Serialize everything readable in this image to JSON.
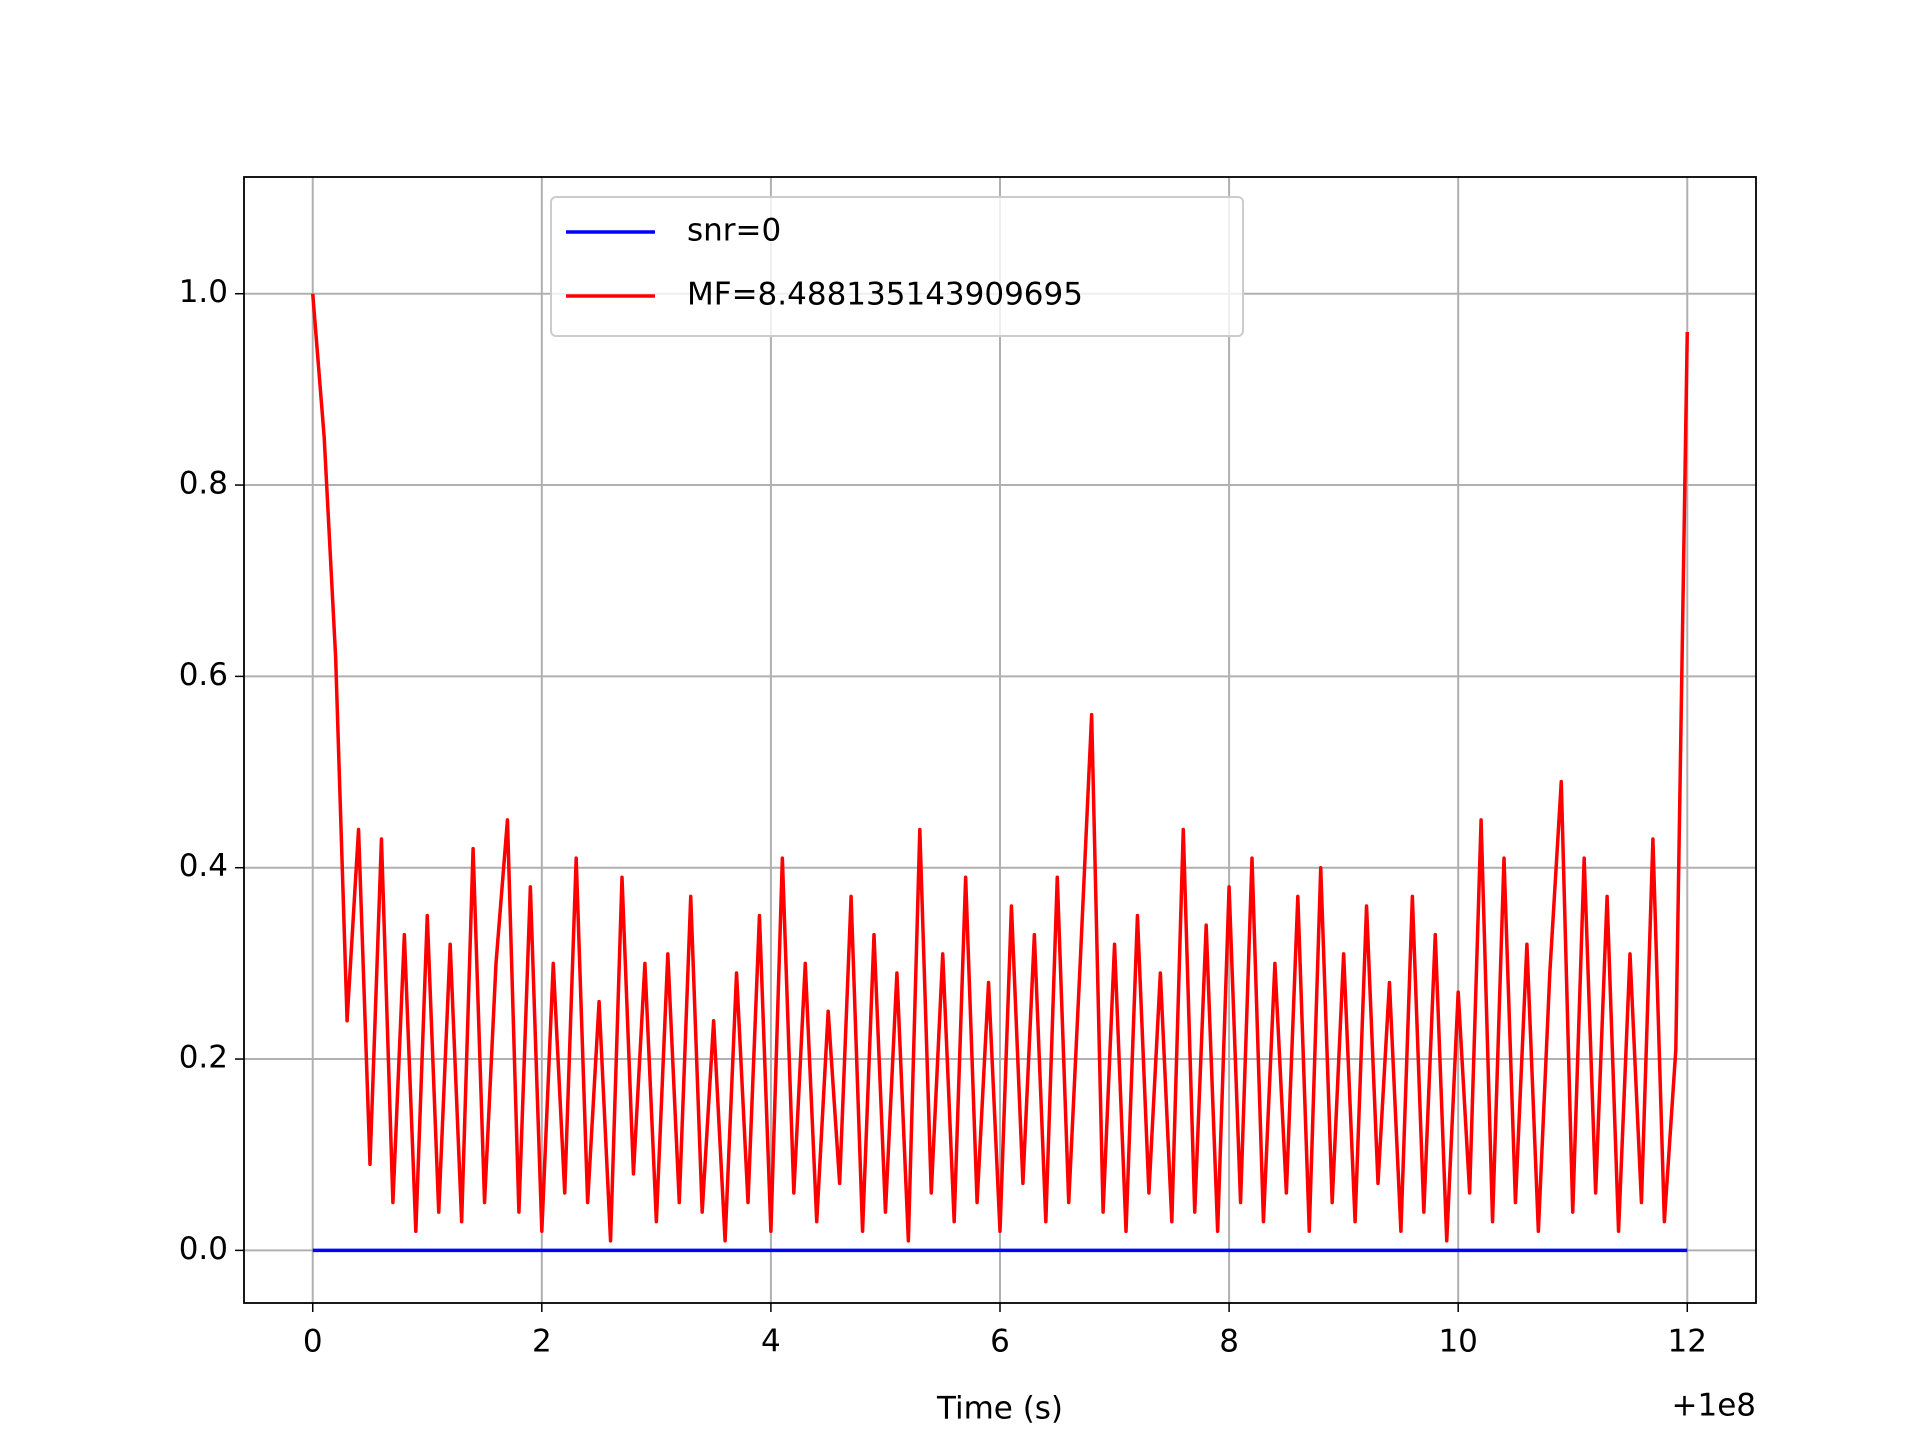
{
  "chart_data": {
    "type": "line",
    "xlabel": "Time (s)",
    "x_offset_label": "+1e8",
    "xlim": [
      -0.6,
      12.6
    ],
    "xticks": [
      0,
      2,
      4,
      6,
      8,
      10,
      12
    ],
    "ylim": [
      -0.055,
      1.122
    ],
    "yticks": [
      {
        "value": 0,
        "label": "0.0"
      },
      {
        "value": 0.2,
        "label": "0.2"
      },
      {
        "value": 0.4,
        "label": "0.4"
      },
      {
        "value": 0.6,
        "label": "0.6"
      },
      {
        "value": 0.8,
        "label": "0.8"
      },
      {
        "value": 1.0,
        "label": "1.0"
      }
    ],
    "grid": true,
    "legend": "upper center",
    "series": [
      {
        "name": "snr=0",
        "color": "#0000ff",
        "x": [
          0,
          12
        ],
        "values": [
          0,
          0
        ]
      },
      {
        "name": "MF=8.488135143909695",
        "color": "#ff0000",
        "x": [
          0.0,
          0.1,
          0.2,
          0.3,
          0.4,
          0.5,
          0.6,
          0.7,
          0.8,
          0.9,
          1.0,
          1.1,
          1.2,
          1.3,
          1.4,
          1.5,
          1.6,
          1.7,
          1.8,
          1.9,
          2.0,
          2.1,
          2.2,
          2.3,
          2.4,
          2.5,
          2.6,
          2.7,
          2.8,
          2.9,
          3.0,
          3.1,
          3.2,
          3.3,
          3.4,
          3.5,
          3.6,
          3.7,
          3.8,
          3.9,
          4.0,
          4.1,
          4.2,
          4.3,
          4.4,
          4.5,
          4.6,
          4.7,
          4.8,
          4.9,
          5.0,
          5.1,
          5.2,
          5.3,
          5.4,
          5.5,
          5.6,
          5.7,
          5.8,
          5.9,
          6.0,
          6.1,
          6.2,
          6.3,
          6.4,
          6.5,
          6.6,
          6.7,
          6.8,
          6.9,
          7.0,
          7.1,
          7.2,
          7.3,
          7.4,
          7.5,
          7.6,
          7.7,
          7.8,
          7.9,
          8.0,
          8.1,
          8.2,
          8.3,
          8.4,
          8.5,
          8.6,
          8.7,
          8.8,
          8.9,
          9.0,
          9.1,
          9.2,
          9.3,
          9.4,
          9.5,
          9.6,
          9.7,
          9.8,
          9.9,
          10.0,
          10.1,
          10.2,
          10.3,
          10.4,
          10.5,
          10.6,
          10.7,
          10.8,
          10.9,
          11.0,
          11.1,
          11.2,
          11.3,
          11.4,
          11.5,
          11.6,
          11.7,
          11.8,
          11.9,
          12.0
        ],
        "values": [
          1.0,
          0.85,
          0.62,
          0.24,
          0.44,
          0.09,
          0.43,
          0.05,
          0.33,
          0.02,
          0.35,
          0.04,
          0.32,
          0.03,
          0.42,
          0.05,
          0.3,
          0.45,
          0.04,
          0.38,
          0.02,
          0.3,
          0.06,
          0.41,
          0.05,
          0.26,
          0.01,
          0.39,
          0.08,
          0.3,
          0.03,
          0.31,
          0.05,
          0.37,
          0.04,
          0.24,
          0.01,
          0.29,
          0.05,
          0.35,
          0.02,
          0.41,
          0.06,
          0.3,
          0.03,
          0.25,
          0.07,
          0.37,
          0.02,
          0.33,
          0.04,
          0.29,
          0.01,
          0.44,
          0.06,
          0.31,
          0.03,
          0.39,
          0.05,
          0.28,
          0.02,
          0.36,
          0.07,
          0.33,
          0.03,
          0.39,
          0.05,
          0.3,
          0.56,
          0.04,
          0.32,
          0.02,
          0.35,
          0.06,
          0.29,
          0.03,
          0.44,
          0.04,
          0.34,
          0.02,
          0.38,
          0.05,
          0.41,
          0.03,
          0.3,
          0.06,
          0.37,
          0.02,
          0.4,
          0.05,
          0.31,
          0.03,
          0.36,
          0.07,
          0.28,
          0.02,
          0.37,
          0.04,
          0.33,
          0.01,
          0.27,
          0.06,
          0.45,
          0.03,
          0.41,
          0.05,
          0.32,
          0.02,
          0.29,
          0.49,
          0.04,
          0.41,
          0.06,
          0.37,
          0.02,
          0.31,
          0.05,
          0.43,
          0.03,
          0.21,
          0.96
        ]
      }
    ]
  }
}
